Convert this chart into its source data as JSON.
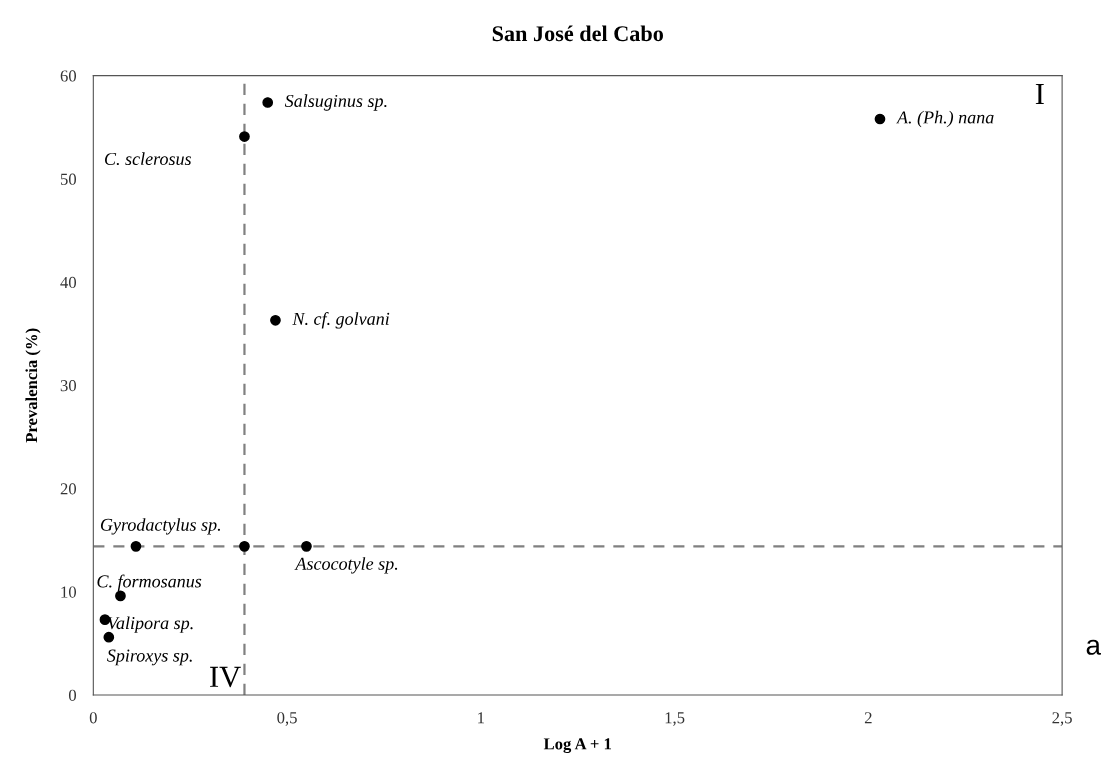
{
  "chart_data": {
    "type": "scatter",
    "title": "San José del Cabo",
    "xlabel": "Log A + 1",
    "ylabel": "Prevalencia (%)",
    "series": [
      {
        "color": "#000000",
        "x": [
          2.03,
          0.45,
          0.39,
          0.47,
          0.11,
          0.39,
          0.55,
          0.07,
          0.03,
          0.04
        ],
        "values": [
          55.8,
          57.4,
          54.1,
          36.3,
          14.4,
          14.4,
          14.4,
          9.6,
          7.3,
          5.6
        ]
      }
    ],
    "marker": "circle",
    "grid": false,
    "legend": false,
    "xlim": [
      0,
      2.5
    ],
    "xticks": [
      0,
      {
        "value": 0.5,
        "label": "0,5"
      },
      1,
      {
        "value": 1.5,
        "label": "1,5"
      },
      2,
      {
        "value": 2.5,
        "label": "2,5"
      }
    ],
    "ylim": [
      0,
      60
    ],
    "yticks": [
      0,
      10,
      20,
      30,
      40,
      50,
      60
    ],
    "ref_lines": [
      {
        "axis": "x",
        "value": 0.39,
        "color": "#808080",
        "line_style": "dashed"
      },
      {
        "axis": "y",
        "value": 14.4,
        "color": "#808080",
        "line_style": "dashed"
      }
    ],
    "annotations": [
      {
        "text": "A. (Ph.) nana",
        "x": 2.03,
        "y": 55.8
      },
      {
        "text": "Salsuginus sp.",
        "x": 0.45,
        "y": 57.4
      },
      "C. sclerosus",
      {
        "text": "N. cf. golvani",
        "x": 0.47,
        "y": 36.3
      },
      {
        "text": "Gyrodactylus sp.",
        "x": 0.11,
        "y": 14.4
      },
      {
        "text": "Ascocotyle sp.",
        "x": 0.55,
        "y": 14.4
      },
      {
        "text": "C. formosanus",
        "x": 0.07,
        "y": 9.6
      },
      {
        "text": "Valipora sp.",
        "x": 0.03,
        "y": 7.3
      },
      {
        "text": "Spiroxys sp.",
        "x": 0.04,
        "y": 5.6
      },
      "I",
      "IV",
      "a"
    ]
  }
}
